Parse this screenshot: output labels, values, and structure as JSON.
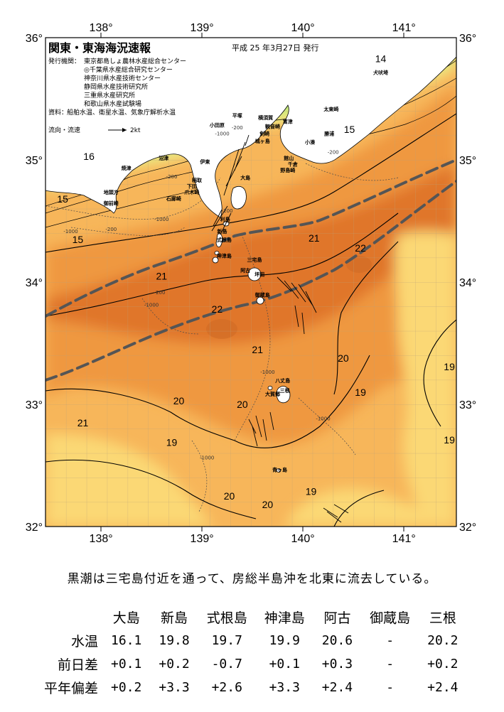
{
  "map": {
    "title": "関東・東海海況速報",
    "issue_date": "平成 25 年3月27日 発行",
    "issuer_label": "発行機関：",
    "issuers": [
      "東京都島しょ農林水産総合センター",
      "◎千葉県水産総合研究センター",
      "神奈川県水産技術センター",
      "静岡県水産技術研究所",
      "三重県水産研究所",
      "和歌山県水産試験場"
    ],
    "source_label": "資料：",
    "source": "船舶水温、衛星水温、気象庁解析水温",
    "current_legend_label": "流向・流速",
    "current_legend_scale": "2kt",
    "lon_ticks": [
      {
        "label": "138°",
        "x": 138
      },
      {
        "label": "139°",
        "x": 139
      },
      {
        "label": "140°",
        "x": 140
      },
      {
        "label": "141°",
        "x": 141
      }
    ],
    "lat_ticks": [
      {
        "label": "36°",
        "y": 36
      },
      {
        "label": "35°",
        "y": 35
      },
      {
        "label": "34°",
        "y": 34
      },
      {
        "label": "33°",
        "y": 33
      },
      {
        "label": "32°",
        "y": 32
      }
    ],
    "isotherm_labels": [
      {
        "text": "14",
        "lon": 140.77,
        "lat": 35.8
      },
      {
        "text": "15",
        "lon": 140.46,
        "lat": 35.22
      },
      {
        "text": "16",
        "lon": 137.88,
        "lat": 35.0
      },
      {
        "text": "15",
        "lon": 137.62,
        "lat": 34.65
      },
      {
        "text": "15",
        "lon": 137.77,
        "lat": 34.32
      },
      {
        "text": "21",
        "lon": 140.11,
        "lat": 34.33
      },
      {
        "text": "22",
        "lon": 140.57,
        "lat": 34.25
      },
      {
        "text": "21",
        "lon": 138.6,
        "lat": 34.02
      },
      {
        "text": "22",
        "lon": 139.15,
        "lat": 33.75
      },
      {
        "text": "21",
        "lon": 139.55,
        "lat": 33.42
      },
      {
        "text": "20",
        "lon": 140.4,
        "lat": 33.35
      },
      {
        "text": "19",
        "lon": 141.45,
        "lat": 33.28
      },
      {
        "text": "19",
        "lon": 140.57,
        "lat": 33.07
      },
      {
        "text": "20",
        "lon": 138.77,
        "lat": 33.0
      },
      {
        "text": "20",
        "lon": 139.4,
        "lat": 32.97
      },
      {
        "text": "21",
        "lon": 137.82,
        "lat": 32.82
      },
      {
        "text": "19",
        "lon": 141.45,
        "lat": 32.68
      },
      {
        "text": "19",
        "lon": 138.7,
        "lat": 32.66
      },
      {
        "text": "19",
        "lon": 140.08,
        "lat": 32.26
      },
      {
        "text": "20",
        "lon": 139.27,
        "lat": 32.22
      },
      {
        "text": "20",
        "lon": 139.65,
        "lat": 32.15
      }
    ],
    "depth_labels": [
      {
        "text": "-1000",
        "lon": 139.2,
        "lat": 35.2
      },
      {
        "text": "-200",
        "lon": 139.35,
        "lat": 35.25
      },
      {
        "text": "-200",
        "lon": 140.3,
        "lat": 35.05
      },
      {
        "text": "-200",
        "lon": 138.7,
        "lat": 34.85
      },
      {
        "text": "-200",
        "lon": 139.25,
        "lat": 34.57
      },
      {
        "text": "-200",
        "lon": 138.1,
        "lat": 34.42
      },
      {
        "text": "-1000",
        "lon": 137.7,
        "lat": 34.4
      },
      {
        "text": "-1000",
        "lon": 138.6,
        "lat": 34.5
      },
      {
        "text": "-1000",
        "lon": 138.5,
        "lat": 33.8
      },
      {
        "text": "-200",
        "lon": 138.58,
        "lat": 33.9
      },
      {
        "text": "-1000",
        "lon": 139.65,
        "lat": 33.25
      },
      {
        "text": "-1000",
        "lon": 140.2,
        "lat": 32.87
      },
      {
        "text": "-1000",
        "lon": 139.05,
        "lat": 32.55
      }
    ],
    "places": [
      {
        "text": "小田原",
        "lon": 139.15,
        "lat": 35.27
      },
      {
        "text": "平塚",
        "lon": 139.35,
        "lat": 35.35
      },
      {
        "text": "横須賀",
        "lon": 139.63,
        "lat": 35.33
      },
      {
        "text": "観音崎",
        "lon": 139.7,
        "lat": 35.26
      },
      {
        "text": "剣崎",
        "lon": 139.62,
        "lat": 35.2
      },
      {
        "text": "富津",
        "lon": 139.85,
        "lat": 35.3
      },
      {
        "text": "城ヶ島",
        "lon": 139.6,
        "lat": 35.14
      },
      {
        "text": "館山",
        "lon": 139.86,
        "lat": 35.0
      },
      {
        "text": "小湊",
        "lon": 140.07,
        "lat": 35.13
      },
      {
        "text": "千倉",
        "lon": 139.9,
        "lat": 34.95
      },
      {
        "text": "野島崎",
        "lon": 139.85,
        "lat": 34.9
      },
      {
        "text": "勝浦",
        "lon": 140.26,
        "lat": 35.2
      },
      {
        "text": "太東崎",
        "lon": 140.28,
        "lat": 35.4
      },
      {
        "text": "犬吠埼",
        "lon": 140.77,
        "lat": 35.7
      },
      {
        "text": "焼津",
        "lon": 138.25,
        "lat": 34.92
      },
      {
        "text": "沼津",
        "lon": 138.62,
        "lat": 35.0
      },
      {
        "text": "伊東",
        "lon": 139.03,
        "lat": 34.97
      },
      {
        "text": "稲取",
        "lon": 138.95,
        "lat": 34.82
      },
      {
        "text": "下田",
        "lon": 138.9,
        "lat": 34.77
      },
      {
        "text": "爪木崎",
        "lon": 138.9,
        "lat": 34.72
      },
      {
        "text": "石廊崎",
        "lon": 138.72,
        "lat": 34.67
      },
      {
        "text": "地頭方",
        "lon": 138.1,
        "lat": 34.72
      },
      {
        "text": "御前崎",
        "lon": 138.1,
        "lat": 34.63
      },
      {
        "text": "大島",
        "lon": 139.43,
        "lat": 34.84
      },
      {
        "text": "利島",
        "lon": 139.23,
        "lat": 34.5
      },
      {
        "text": "新島",
        "lon": 139.2,
        "lat": 34.4
      },
      {
        "text": "式根島",
        "lon": 139.22,
        "lat": 34.33
      },
      {
        "text": "神津島",
        "lon": 139.22,
        "lat": 34.2
      },
      {
        "text": "三宅島",
        "lon": 139.52,
        "lat": 34.17
      },
      {
        "text": "阿古",
        "lon": 139.43,
        "lat": 34.08
      },
      {
        "text": "坪田",
        "lon": 139.57,
        "lat": 34.05
      },
      {
        "text": "御蔵島",
        "lon": 139.6,
        "lat": 33.88
      },
      {
        "text": "八丈島",
        "lon": 139.8,
        "lat": 33.18
      },
      {
        "text": "三根",
        "lon": 139.82,
        "lat": 33.1
      },
      {
        "text": "大賀郷",
        "lon": 139.7,
        "lat": 33.07
      },
      {
        "text": "青ヶ島",
        "lon": 139.77,
        "lat": 32.45
      }
    ]
  },
  "summary": "黒潮は三宅島付近を通って、房総半島沖を北東に流去している。",
  "table": {
    "stations": [
      "大島",
      "新島",
      "式根島",
      "神津島",
      "阿古",
      "御蔵島",
      "三根"
    ],
    "rows": [
      {
        "label": "水温",
        "values": [
          "16.1",
          "19.8",
          "19.7",
          "19.9",
          "20.6",
          "-",
          "20.2"
        ]
      },
      {
        "label": "前日差",
        "values": [
          "+0.1",
          "+0.2",
          "-0.7",
          "+0.1",
          "+0.3",
          "-",
          "+0.2"
        ]
      },
      {
        "label": "平年偏差",
        "values": [
          "+0.2",
          "+3.3",
          "+2.6",
          "+3.3",
          "+2.4",
          "-",
          "+2.4"
        ]
      }
    ]
  },
  "colors": {
    "sea_12_13": "#00b4b0",
    "sea_14": "#33c9a6",
    "sea_15": "#62d88f",
    "sea_16": "#8fe27a",
    "sea_17": "#c3ea74",
    "sea_18": "#f2ef8a",
    "sea_19": "#fbd874",
    "sea_20": "#f7b65a",
    "sea_21": "#ef9840",
    "sea_22": "#e0762c",
    "kuroshio_axis": "#555555",
    "land": "#ffffff"
  }
}
